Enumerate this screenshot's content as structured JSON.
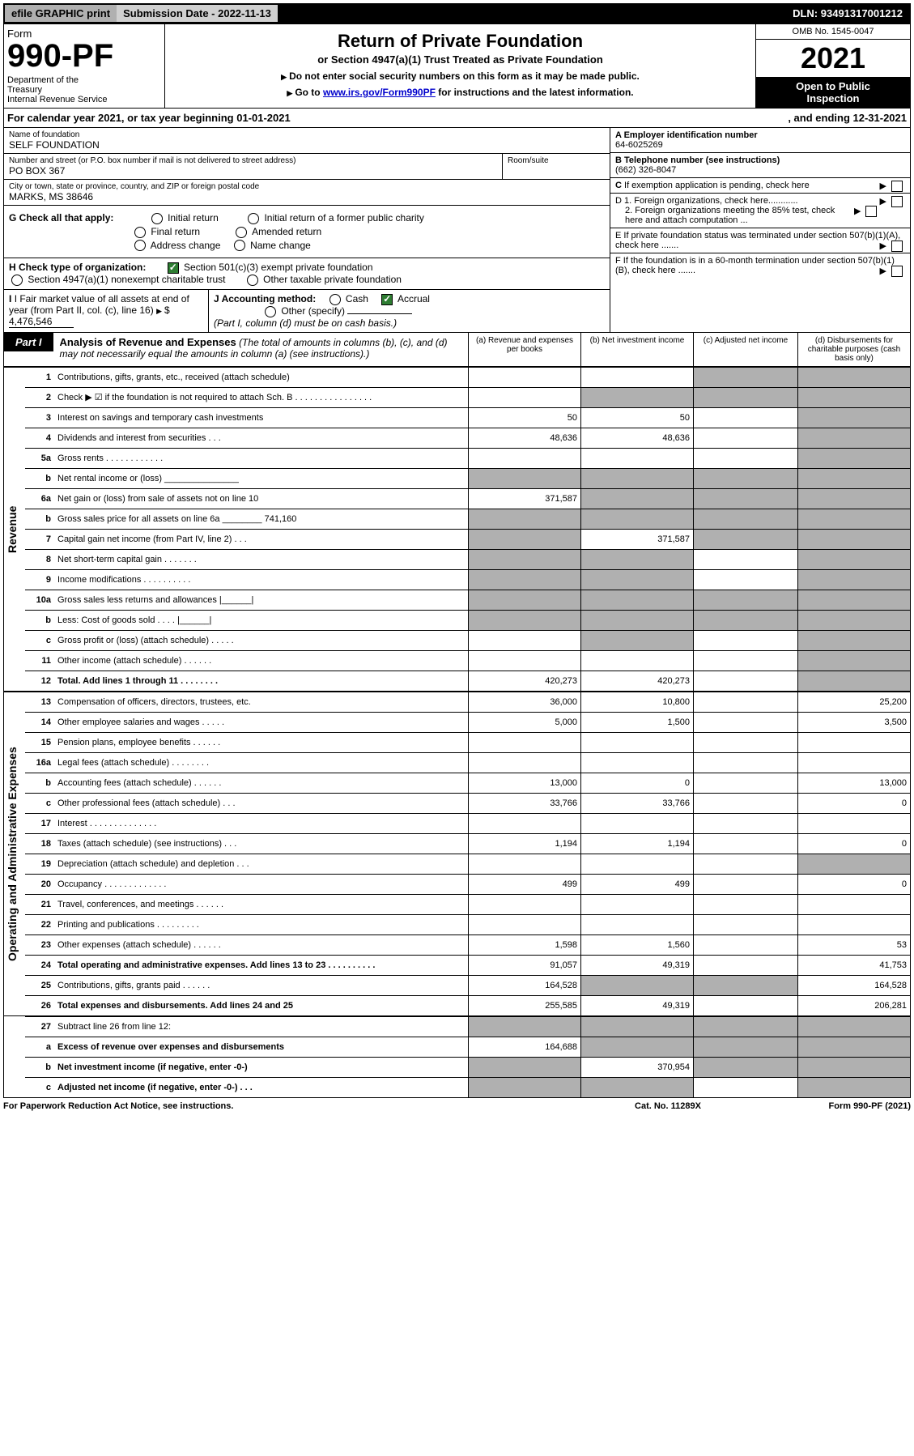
{
  "top": {
    "efile": "efile GRAPHIC print",
    "subdate_label": "Submission Date - ",
    "subdate": "2022-11-13",
    "dln_label": "DLN: ",
    "dln": "93491317001212"
  },
  "header": {
    "form_word": "Form",
    "form_num": "990-PF",
    "dept": "Department of the Treasury\nInternal Revenue Service",
    "title": "Return of Private Foundation",
    "subtitle": "or Section 4947(a)(1) Trust Treated as Private Foundation",
    "instr1": "Do not enter social security numbers on this form as it may be made public.",
    "instr2_pre": "Go to ",
    "instr2_link": "www.irs.gov/Form990PF",
    "instr2_post": " for instructions and the latest information.",
    "omb": "OMB No. 1545-0047",
    "year": "2021",
    "open": "Open to Public Inspection"
  },
  "calyear": {
    "text": "For calendar year 2021, or tax year beginning 01-01-2021",
    "ending": ", and ending 12-31-2021"
  },
  "entity": {
    "name_label": "Name of foundation",
    "name": "SELF FOUNDATION",
    "addr_label": "Number and street (or P.O. box number if mail is not delivered to street address)",
    "addr": "PO BOX 367",
    "room_label": "Room/suite",
    "city_label": "City or town, state or province, country, and ZIP or foreign postal code",
    "city": "MARKS, MS  38646",
    "a_label": "A Employer identification number",
    "a_val": "64-6025269",
    "b_label": "B Telephone number (see instructions)",
    "b_val": "(662) 326-8047",
    "c_label": "C If exemption application is pending, check here",
    "d1": "D 1. Foreign organizations, check here............",
    "d2": "2. Foreign organizations meeting the 85% test, check here and attach computation ...",
    "e": "E  If private foundation status was terminated under section 507(b)(1)(A), check here .......",
    "f": "F  If the foundation is in a 60-month termination under section 507(b)(1)(B), check here .......",
    "g_label": "G Check all that apply:",
    "g_opts": [
      "Initial return",
      "Final return",
      "Address change",
      "Initial return of a former public charity",
      "Amended return",
      "Name change"
    ],
    "h_label": "H Check type of organization:",
    "h1": "Section 501(c)(3) exempt private foundation",
    "h2": "Section 4947(a)(1) nonexempt charitable trust",
    "h3": "Other taxable private foundation",
    "i_label": "I Fair market value of all assets at end of year (from Part II, col. (c), line 16)",
    "i_val": "4,476,546",
    "j_label": "J Accounting method:",
    "j_cash": "Cash",
    "j_accrual": "Accrual",
    "j_other": "Other (specify)",
    "j_note": "(Part I, column (d) must be on cash basis.)"
  },
  "part1": {
    "tab": "Part I",
    "title": "Analysis of Revenue and Expenses",
    "note": "(The total of amounts in columns (b), (c), and (d) may not necessarily equal the amounts in column (a) (see instructions).)",
    "cols": {
      "a": "(a)   Revenue and expenses per books",
      "b": "(b)   Net investment income",
      "c": "(c)   Adjusted net income",
      "d": "(d)   Disbursements for charitable purposes (cash basis only)"
    }
  },
  "side": {
    "revenue": "Revenue",
    "expenses": "Operating and Administrative Expenses"
  },
  "rows": [
    {
      "n": "1",
      "d": "Contributions, gifts, grants, etc., received (attach schedule)",
      "a": "",
      "b": "",
      "c": "s",
      "ds": "s"
    },
    {
      "n": "2",
      "d": "Check ▶ ☑ if the foundation is not required to attach Sch. B   .  .  .  .  .  .  .  .  .  .  .  .  .  .  .  .",
      "a": "",
      "b": "s",
      "c": "s",
      "ds": "s"
    },
    {
      "n": "3",
      "d": "Interest on savings and temporary cash investments",
      "a": "50",
      "b": "50",
      "c": "",
      "ds": "s"
    },
    {
      "n": "4",
      "d": "Dividends and interest from securities    .   .   .",
      "a": "48,636",
      "b": "48,636",
      "c": "",
      "ds": "s"
    },
    {
      "n": "5a",
      "d": "Gross rents    .   .   .   .   .   .   .   .   .   .   .   .",
      "a": "",
      "b": "",
      "c": "",
      "ds": "s"
    },
    {
      "n": "b",
      "d": "Net rental income or (loss)  _______________",
      "a": "s",
      "b": "s",
      "c": "s",
      "ds": "s"
    },
    {
      "n": "6a",
      "d": "Net gain or (loss) from sale of assets not on line 10",
      "a": "371,587",
      "b": "s",
      "c": "s",
      "ds": "s"
    },
    {
      "n": "b",
      "d": "Gross sales price for all assets on line 6a ________ 741,160",
      "a": "s",
      "b": "s",
      "c": "s",
      "ds": "s"
    },
    {
      "n": "7",
      "d": "Capital gain net income (from Part IV, line 2)   .   .   .",
      "a": "s",
      "b": "371,587",
      "c": "s",
      "ds": "s"
    },
    {
      "n": "8",
      "d": "Net short-term capital gain   .   .   .   .   .   .   .",
      "a": "s",
      "b": "s",
      "c": "",
      "ds": "s"
    },
    {
      "n": "9",
      "d": "Income modifications  .   .   .   .   .   .   .   .   .   .",
      "a": "s",
      "b": "s",
      "c": "",
      "ds": "s"
    },
    {
      "n": "10a",
      "d": "Gross sales less returns and allowances  |______|",
      "a": "s",
      "b": "s",
      "c": "s",
      "ds": "s"
    },
    {
      "n": "b",
      "d": "Less: Cost of goods sold    .   .   .   .   |______|",
      "a": "s",
      "b": "s",
      "c": "s",
      "ds": "s"
    },
    {
      "n": "c",
      "d": "Gross profit or (loss) (attach schedule)    .   .   .   .   .",
      "a": "",
      "b": "s",
      "c": "",
      "ds": "s"
    },
    {
      "n": "11",
      "d": "Other income (attach schedule)    .   .   .   .   .   .",
      "a": "",
      "b": "",
      "c": "",
      "ds": "s"
    },
    {
      "n": "12",
      "d": "Total. Add lines 1 through 11   .   .   .   .   .   .   .   .",
      "a": "420,273",
      "b": "420,273",
      "c": "",
      "ds": "s",
      "bold": true
    }
  ],
  "exp": [
    {
      "n": "13",
      "d": "Compensation of officers, directors, trustees, etc.",
      "a": "36,000",
      "b": "10,800",
      "c": "",
      "ds": "25,200"
    },
    {
      "n": "14",
      "d": "Other employee salaries and wages    .   .   .   .   .",
      "a": "5,000",
      "b": "1,500",
      "c": "",
      "ds": "3,500"
    },
    {
      "n": "15",
      "d": "Pension plans, employee benefits  .   .   .   .   .   .",
      "a": "",
      "b": "",
      "c": "",
      "ds": ""
    },
    {
      "n": "16a",
      "d": "Legal fees (attach schedule)  .   .   .   .   .   .   .   .",
      "a": "",
      "b": "",
      "c": "",
      "ds": ""
    },
    {
      "n": "b",
      "d": "Accounting fees (attach schedule)  .   .   .   .   .   .",
      "a": "13,000",
      "b": "0",
      "c": "",
      "ds": "13,000"
    },
    {
      "n": "c",
      "d": "Other professional fees (attach schedule)    .   .   .",
      "a": "33,766",
      "b": "33,766",
      "c": "",
      "ds": "0"
    },
    {
      "n": "17",
      "d": "Interest  .   .   .   .   .   .   .   .   .   .   .   .   .   .",
      "a": "",
      "b": "",
      "c": "",
      "ds": ""
    },
    {
      "n": "18",
      "d": "Taxes (attach schedule) (see instructions)    .   .   .",
      "a": "1,194",
      "b": "1,194",
      "c": "",
      "ds": "0"
    },
    {
      "n": "19",
      "d": "Depreciation (attach schedule) and depletion    .   .   .",
      "a": "",
      "b": "",
      "c": "",
      "ds": "s"
    },
    {
      "n": "20",
      "d": "Occupancy  .   .   .   .   .   .   .   .   .   .   .   .   .",
      "a": "499",
      "b": "499",
      "c": "",
      "ds": "0"
    },
    {
      "n": "21",
      "d": "Travel, conferences, and meetings  .   .   .   .   .   .",
      "a": "",
      "b": "",
      "c": "",
      "ds": ""
    },
    {
      "n": "22",
      "d": "Printing and publications  .   .   .   .   .   .   .   .   .",
      "a": "",
      "b": "",
      "c": "",
      "ds": ""
    },
    {
      "n": "23",
      "d": "Other expenses (attach schedule)  .   .   .   .   .   .",
      "a": "1,598",
      "b": "1,560",
      "c": "",
      "ds": "53"
    },
    {
      "n": "24",
      "d": "Total operating and administrative expenses. Add lines 13 to 23   .   .   .   .   .   .   .   .   .   .",
      "a": "91,057",
      "b": "49,319",
      "c": "",
      "ds": "41,753",
      "bold": true
    },
    {
      "n": "25",
      "d": "Contributions, gifts, grants paid    .   .   .   .   .   .",
      "a": "164,528",
      "b": "s",
      "c": "s",
      "ds": "164,528"
    },
    {
      "n": "26",
      "d": "Total expenses and disbursements. Add lines 24 and 25",
      "a": "255,585",
      "b": "49,319",
      "c": "",
      "ds": "206,281",
      "bold": true
    }
  ],
  "bottom": [
    {
      "n": "27",
      "d": "Subtract line 26 from line 12:",
      "a": "s",
      "b": "s",
      "c": "s",
      "ds": "s"
    },
    {
      "n": "a",
      "d": "Excess of revenue over expenses and disbursements",
      "a": "164,688",
      "b": "s",
      "c": "s",
      "ds": "s",
      "bold": true
    },
    {
      "n": "b",
      "d": "Net investment income (if negative, enter -0-)",
      "a": "s",
      "b": "370,954",
      "c": "s",
      "ds": "s",
      "bold": true
    },
    {
      "n": "c",
      "d": "Adjusted net income (if negative, enter -0-)   .   .   .",
      "a": "s",
      "b": "s",
      "c": "",
      "ds": "s",
      "bold": true
    }
  ],
  "footer": {
    "left": "For Paperwork Reduction Act Notice, see instructions.",
    "mid": "Cat. No. 11289X",
    "right": "Form 990-PF (2021)"
  },
  "colors": {
    "shade": "#b0b0b0",
    "link": "#0000cc",
    "check": "#2e7d32"
  }
}
